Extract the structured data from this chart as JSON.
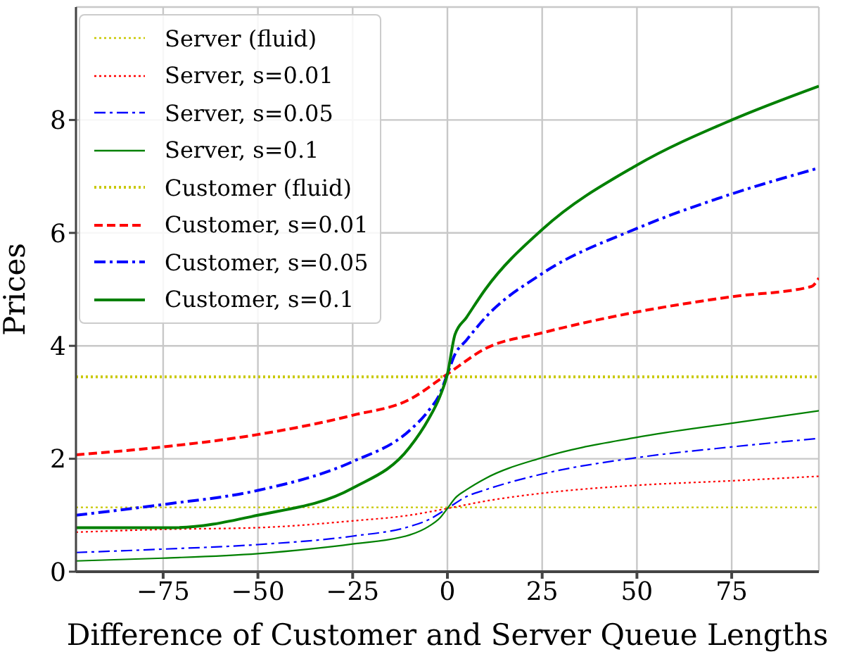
{
  "chart_data": {
    "type": "line",
    "xlabel": "Difference of Customer and Server Queue Lengths",
    "ylabel": "Prices",
    "xlim": [
      -98,
      98
    ],
    "xticks": [
      -75,
      -50,
      -25,
      0,
      25,
      50,
      75
    ],
    "ylim": [
      0,
      10
    ],
    "yticks": [
      0,
      2,
      4,
      6,
      8
    ],
    "grid": true,
    "legend": "top left",
    "marker": "none",
    "series": [
      {
        "name": "Server (fluid)",
        "color": "#c8c800",
        "line_style": "dotted",
        "x": [
          -98,
          98
        ],
        "values": [
          1.14,
          1.14
        ]
      },
      {
        "name": "Server, s=0.01",
        "color": "#ff0000",
        "line_style": "dotted",
        "x": [
          -98,
          -75,
          -50,
          -25,
          -10,
          0,
          10,
          25,
          50,
          75,
          98
        ],
        "values": [
          0.7,
          0.75,
          0.78,
          0.9,
          1.0,
          1.12,
          1.25,
          1.39,
          1.53,
          1.61,
          1.69
        ]
      },
      {
        "name": "Server, s=0.05",
        "color": "#0000ff",
        "line_style": "dashdot",
        "x": [
          -98,
          -75,
          -50,
          -25,
          -10,
          -5,
          0,
          5,
          10,
          25,
          50,
          75,
          98
        ],
        "values": [
          0.34,
          0.4,
          0.48,
          0.63,
          0.8,
          0.92,
          1.12,
          1.33,
          1.45,
          1.73,
          2.02,
          2.21,
          2.36
        ]
      },
      {
        "name": "Server, s=0.1",
        "color": "#008000",
        "line_style": "solid",
        "x": [
          -98,
          -75,
          -50,
          -25,
          -10,
          -5,
          -2,
          0,
          2,
          5,
          10,
          25,
          50,
          75,
          98
        ],
        "values": [
          0.19,
          0.24,
          0.32,
          0.49,
          0.65,
          0.8,
          0.95,
          1.12,
          1.3,
          1.45,
          1.65,
          2.02,
          2.38,
          2.63,
          2.85
        ]
      },
      {
        "name": "Customer (fluid)",
        "color": "#c8c800",
        "line_style": "dotted",
        "x": [
          -98,
          98
        ],
        "values": [
          3.45,
          3.45
        ]
      },
      {
        "name": "Customer, s=0.01",
        "color": "#ff0000",
        "line_style": "dashed",
        "x": [
          -98,
          -75,
          -50,
          -25,
          -10,
          0,
          10,
          25,
          50,
          75,
          96,
          98
        ],
        "values": [
          2.07,
          2.21,
          2.43,
          2.77,
          3.05,
          3.5,
          3.95,
          4.23,
          4.6,
          4.87,
          5.05,
          5.2
        ]
      },
      {
        "name": "Customer, s=0.05",
        "color": "#0000ff",
        "line_style": "dashdot",
        "x": [
          -98,
          -75,
          -50,
          -25,
          -10,
          -5,
          -2,
          0,
          2,
          5,
          10,
          25,
          50,
          75,
          98
        ],
        "values": [
          1.0,
          1.19,
          1.44,
          1.95,
          2.5,
          2.85,
          3.15,
          3.5,
          3.85,
          4.1,
          4.5,
          5.28,
          6.08,
          6.69,
          7.15
        ]
      },
      {
        "name": "Customer, s=0.1",
        "color": "#008000",
        "line_style": "solid",
        "x": [
          -98,
          -72,
          -50,
          -25,
          -10,
          -5,
          -2,
          0,
          2,
          5,
          10,
          25,
          50,
          75,
          98
        ],
        "values": [
          0.78,
          0.78,
          1.0,
          1.48,
          2.2,
          2.7,
          3.1,
          3.5,
          4.2,
          4.5,
          5.0,
          6.06,
          7.2,
          8.0,
          8.6
        ]
      }
    ]
  }
}
